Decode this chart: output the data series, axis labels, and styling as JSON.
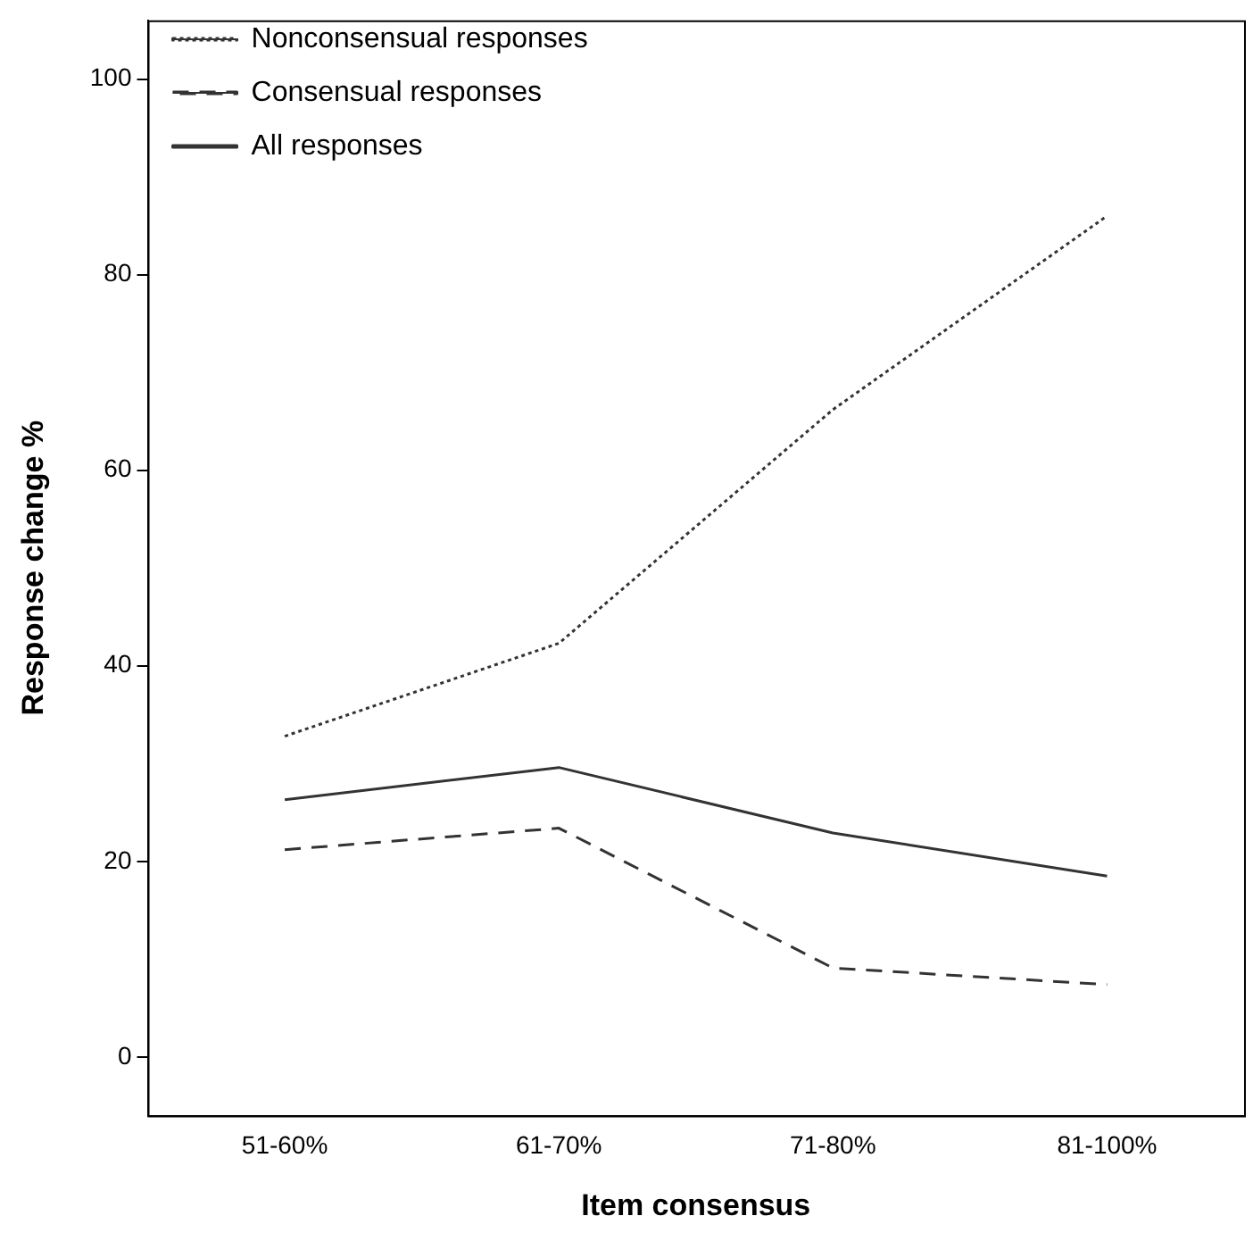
{
  "chart_data": {
    "type": "line",
    "xlabel": "Item consensus",
    "ylabel": "Response change %",
    "categories": [
      "51-60%",
      "61-70%",
      "71-80%",
      "81-100%"
    ],
    "series": [
      {
        "name": "Nonconsensual responses",
        "color": "#333333",
        "line_style": "dotted",
        "values": [
          32.8,
          42.3,
          66.2,
          86.0
        ]
      },
      {
        "name": "Consensual responses",
        "color": "#333333",
        "line_style": "dashed",
        "values": [
          21.2,
          23.4,
          9.1,
          7.4
        ]
      },
      {
        "name": "All responses",
        "color": "#333333",
        "line_style": "solid",
        "values": [
          26.3,
          29.6,
          22.9,
          18.5
        ]
      }
    ],
    "ylim": [
      -6,
      106
    ],
    "yticks": [
      0,
      20,
      40,
      60,
      80,
      100
    ],
    "grid": false,
    "legend": "top left",
    "marker": "none"
  }
}
